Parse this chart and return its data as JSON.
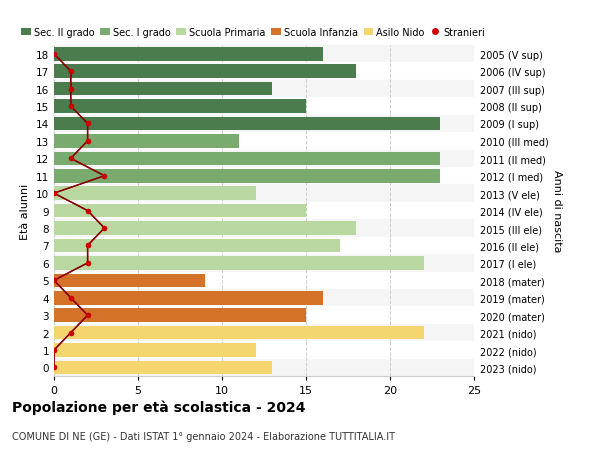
{
  "ages": [
    18,
    17,
    16,
    15,
    14,
    13,
    12,
    11,
    10,
    9,
    8,
    7,
    6,
    5,
    4,
    3,
    2,
    1,
    0
  ],
  "right_labels": [
    "2005 (V sup)",
    "2006 (IV sup)",
    "2007 (III sup)",
    "2008 (II sup)",
    "2009 (I sup)",
    "2010 (III med)",
    "2011 (II med)",
    "2012 (I med)",
    "2013 (V ele)",
    "2014 (IV ele)",
    "2015 (III ele)",
    "2016 (II ele)",
    "2017 (I ele)",
    "2018 (mater)",
    "2019 (mater)",
    "2020 (mater)",
    "2021 (nido)",
    "2022 (nido)",
    "2023 (nido)"
  ],
  "bar_values": [
    16,
    18,
    13,
    15,
    23,
    11,
    23,
    23,
    12,
    15,
    18,
    17,
    22,
    9,
    16,
    15,
    22,
    12,
    13
  ],
  "bar_colors": [
    "#4a7c4e",
    "#4a7c4e",
    "#4a7c4e",
    "#4a7c4e",
    "#4a7c4e",
    "#7aab6e",
    "#7aab6e",
    "#7aab6e",
    "#b8d8a0",
    "#b8d8a0",
    "#b8d8a0",
    "#b8d8a0",
    "#b8d8a0",
    "#d4722a",
    "#d4722a",
    "#d4722a",
    "#f5d56e",
    "#f5d56e",
    "#f5d56e"
  ],
  "stranieri_values": [
    0,
    1,
    1,
    1,
    2,
    2,
    1,
    3,
    0,
    2,
    3,
    2,
    2,
    0,
    1,
    2,
    1,
    0,
    0
  ],
  "legend_labels": [
    "Sec. II grado",
    "Sec. I grado",
    "Scuola Primaria",
    "Scuola Infanzia",
    "Asilo Nido",
    "Stranieri"
  ],
  "legend_colors": [
    "#4a7c4e",
    "#7aab6e",
    "#b8d8a0",
    "#d4722a",
    "#f5d56e",
    "#cc0000"
  ],
  "title": "Popolazione per età scolastica - 2024",
  "subtitle": "COMUNE DI NE (GE) - Dati ISTAT 1° gennaio 2024 - Elaborazione TUTTITALIA.IT",
  "ylabel_left": "Età alunni",
  "ylabel_right": "Anni di nascita",
  "xlim": [
    0,
    25
  ],
  "xticks": [
    0,
    5,
    10,
    15,
    20,
    25
  ],
  "bg_color": "#ffffff",
  "grid_color": "#cccccc",
  "stranieri_line_color": "#8b0000",
  "stranieri_marker_color": "#cc0000"
}
